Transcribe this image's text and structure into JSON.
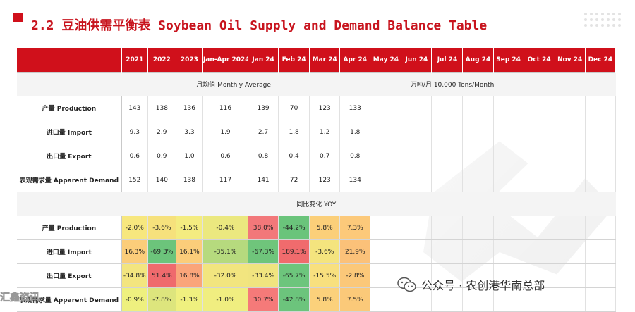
{
  "title": "2.2 豆油供需平衡表 Soybean Oil Supply and Demand Balance Table",
  "columns": [
    "2021",
    "2022",
    "2023",
    "Jan-Apr 2024",
    "Jan 24",
    "Feb 24",
    "Mar 24",
    "Apr 24",
    "May 24",
    "Jun 24",
    "Jul 24",
    "Aug 24",
    "Sep 24",
    "Oct 24",
    "Nov 24",
    "Dec 24"
  ],
  "monthly_avg_label": "月均值 Monthly Average",
  "unit_label": "万吨/月  10,000 Tons/Month",
  "supply_rows": [
    {
      "label": "产量 Production",
      "values": [
        "143",
        "138",
        "136",
        "116",
        "139",
        "70",
        "123",
        "133",
        "",
        "",
        "",
        "",
        "",
        "",
        "",
        ""
      ]
    },
    {
      "label": "进口量 Import",
      "values": [
        "9.3",
        "2.9",
        "3.3",
        "1.9",
        "2.7",
        "1.8",
        "1.2",
        "1.8",
        "",
        "",
        "",
        "",
        "",
        "",
        "",
        ""
      ]
    },
    {
      "label": "出口量 Export",
      "values": [
        "0.6",
        "0.9",
        "1.0",
        "0.6",
        "0.8",
        "0.4",
        "0.7",
        "0.8",
        "",
        "",
        "",
        "",
        "",
        "",
        "",
        ""
      ]
    },
    {
      "label": "表观需求量 Apparent Demand",
      "values": [
        "152",
        "140",
        "138",
        "117",
        "141",
        "72",
        "123",
        "134",
        "",
        "",
        "",
        "",
        "",
        "",
        "",
        ""
      ]
    }
  ],
  "yoy_label": "同比变化 YOY",
  "yoy_rows": [
    {
      "label": "产量 Production",
      "values": [
        "-2.0%",
        "-3.6%",
        "-1.5%",
        "-0.4%",
        "38.0%",
        "-44.2%",
        "5.8%",
        "7.3%",
        "",
        "",
        "",
        "",
        "",
        "",
        "",
        ""
      ],
      "colors": [
        "#f7e77e",
        "#f6e17c",
        "#f4ec80",
        "#ebe87f",
        "#f2787a",
        "#6ac47b",
        "#fbcf79",
        "#fcc97a",
        "",
        "",
        "",
        "",
        "",
        "",
        "",
        ""
      ]
    },
    {
      "label": "进口量 Import",
      "values": [
        "16.3%",
        "-69.3%",
        "16.1%",
        "-35.1%",
        "-67.3%",
        "189.1%",
        "-3.6%",
        "21.9%",
        "",
        "",
        "",
        "",
        "",
        "",
        "",
        ""
      ],
      "colors": [
        "#fbcd7a",
        "#6cc47b",
        "#fbcd7a",
        "#b6da7e",
        "#6fc57b",
        "#f06b6d",
        "#f4e47e",
        "#fbc179",
        "",
        "",
        "",
        "",
        "",
        "",
        "",
        ""
      ]
    },
    {
      "label": "出口量 Export",
      "values": [
        "-34.8%",
        "51.4%",
        "16.8%",
        "-32.0%",
        "-33.4%",
        "-65.7%",
        "-15.5%",
        "-2.8%",
        "",
        "",
        "",
        "",
        "",
        "",
        "",
        ""
      ],
      "colors": [
        "#f3e57f",
        "#ef6a6d",
        "#faa57a",
        "#f2e57f",
        "#f0e47f",
        "#6dc57c",
        "#f8e07e",
        "#fbc879",
        "",
        "",
        "",
        "",
        "",
        "",
        "",
        ""
      ]
    },
    {
      "label": "表观需求量 Apparent Demand",
      "values": [
        "-0.9%",
        "-7.8%",
        "-1.3%",
        "-1.0%",
        "30.7%",
        "-42.8%",
        "5.8%",
        "7.5%",
        "",
        "",
        "",
        "",
        "",
        "",
        "",
        ""
      ],
      "colors": [
        "#eef07f",
        "#dde57d",
        "#eff07f",
        "#f0ee80",
        "#f57a79",
        "#6cc47c",
        "#fbd17b",
        "#fbc979",
        "",
        "",
        "",
        "",
        "",
        "",
        "",
        ""
      ]
    }
  ],
  "watermark_text": "公众号 · 农创港华南总部",
  "corner_watermark": "汇鑫资讯",
  "colors": {
    "brand_red": "#d0101b",
    "header_text": "#ffffff"
  },
  "icons": [
    "wechat-icon",
    "dots-logo-icon"
  ]
}
